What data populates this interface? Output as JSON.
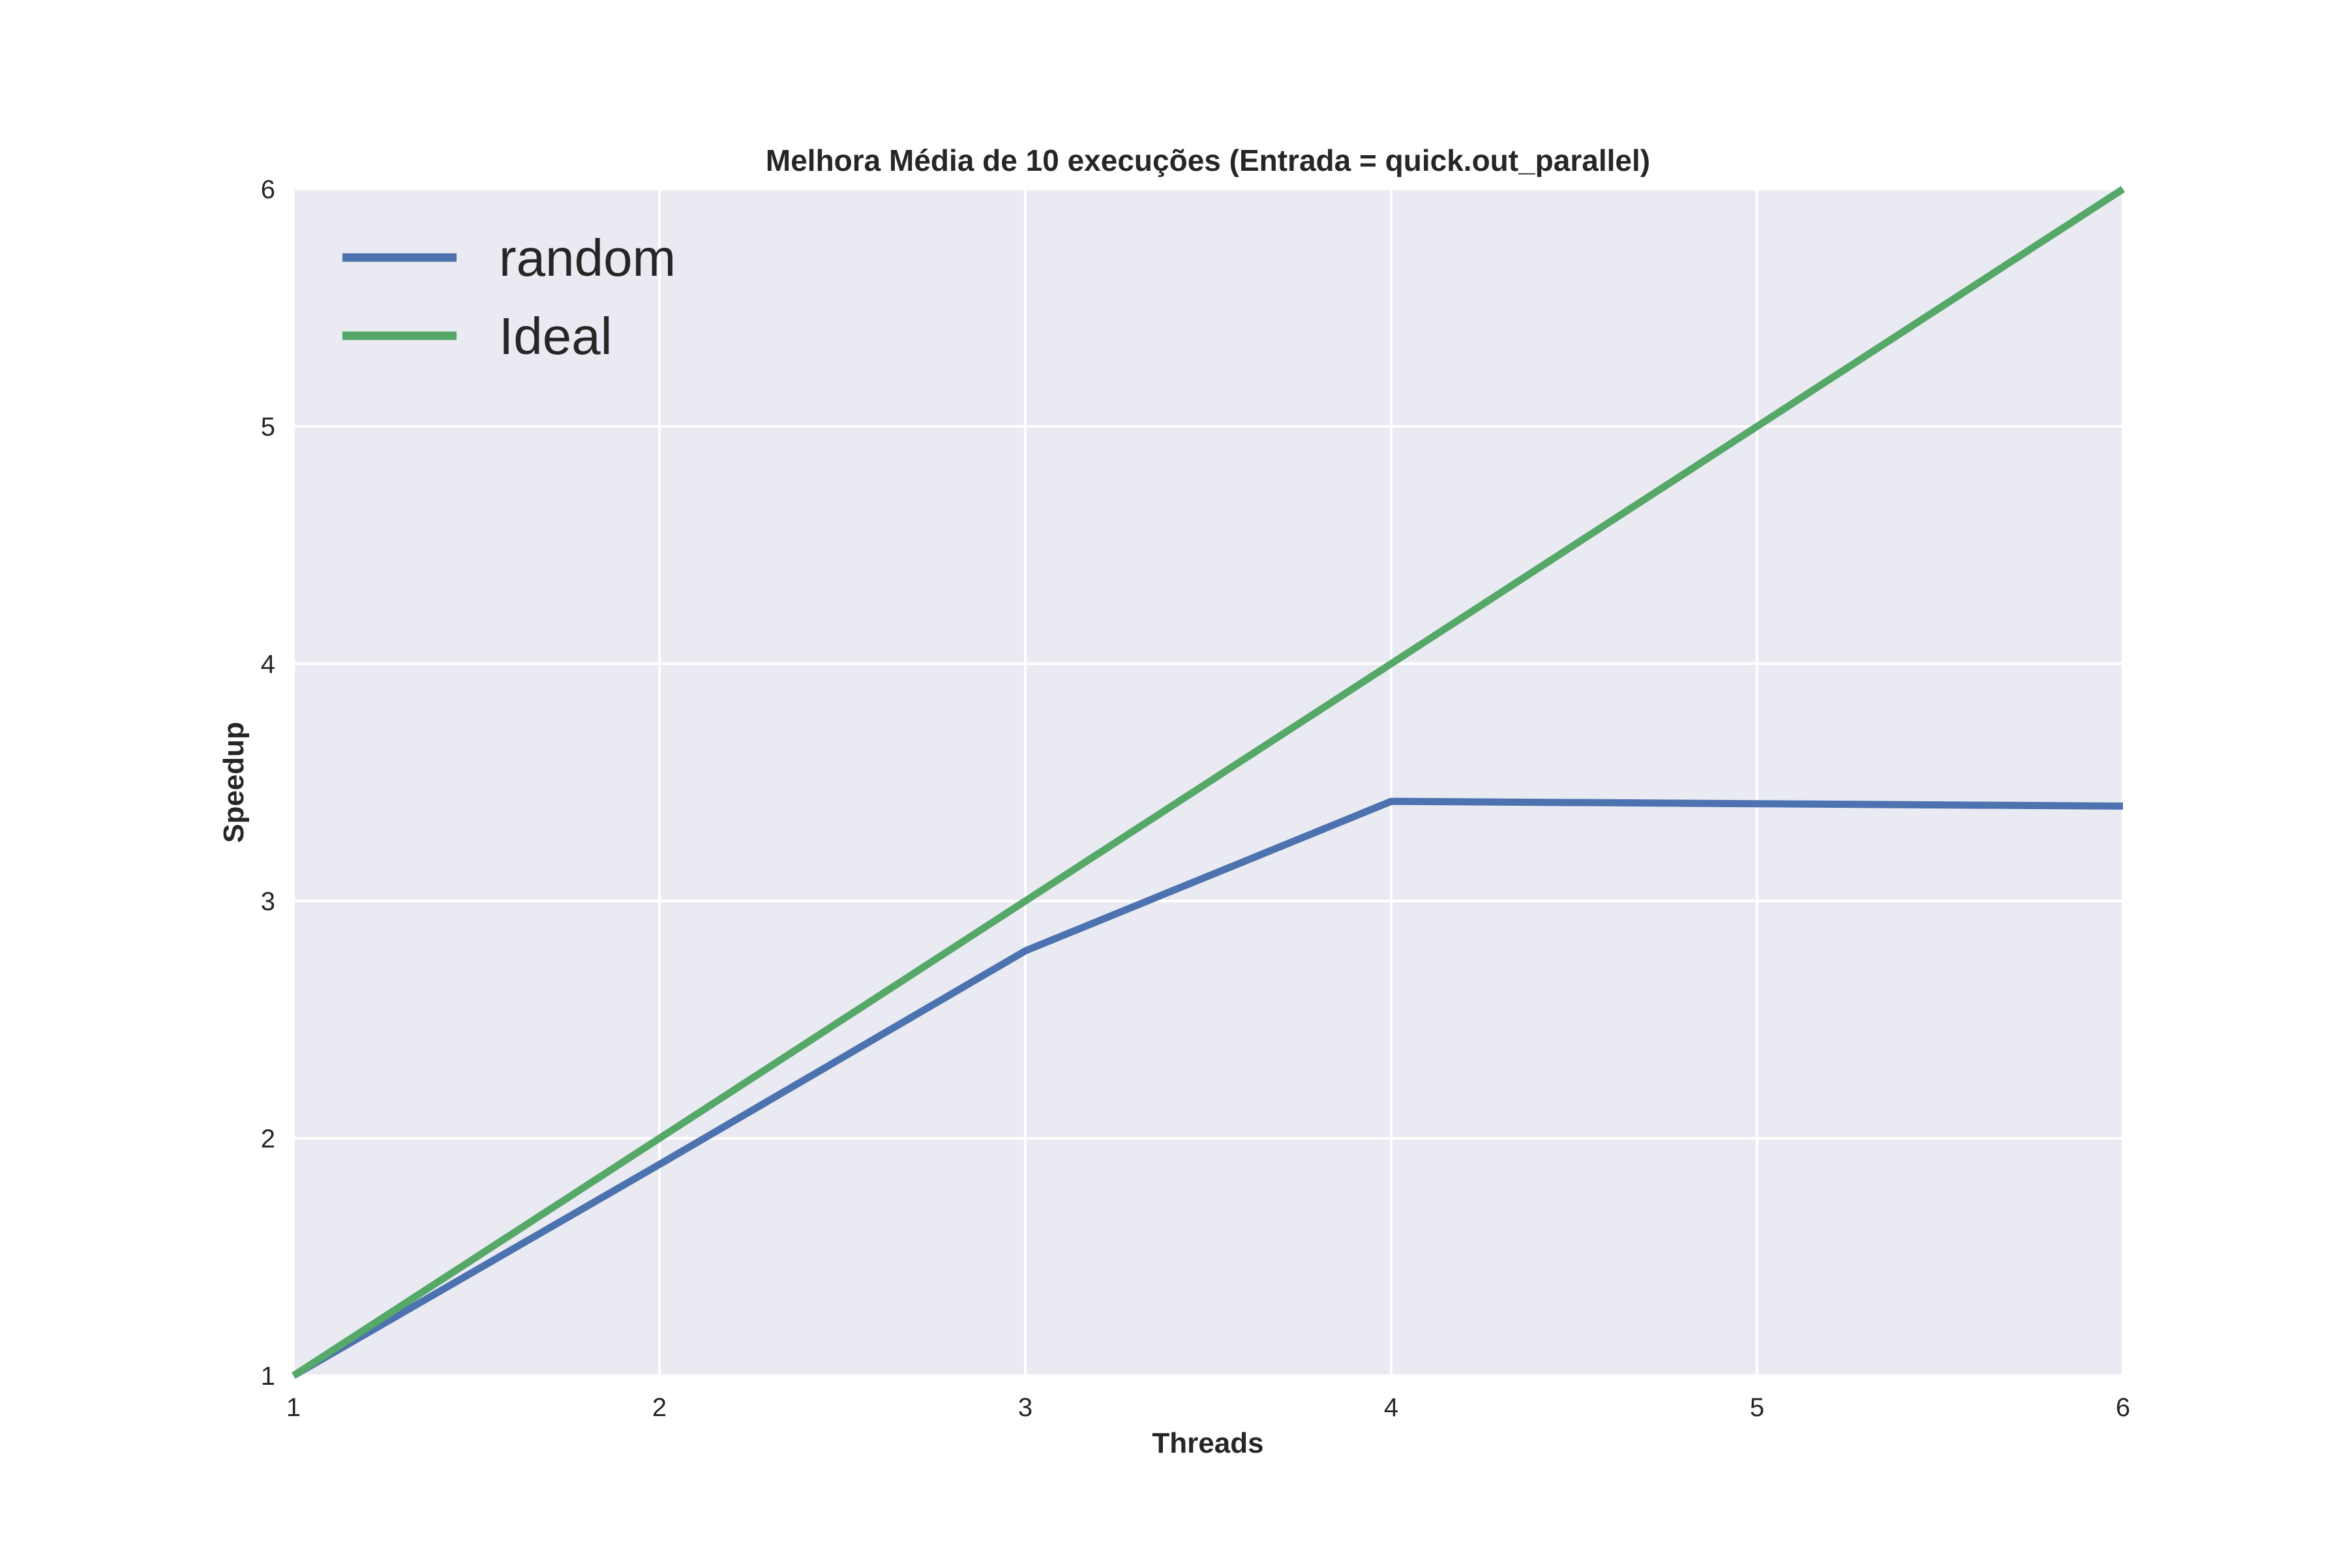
{
  "chart_data": {
    "type": "line",
    "title": "Melhora Média de 10 execuções (Entrada = quick.out_parallel)",
    "xlabel": "Threads",
    "ylabel": "Speedup",
    "x": [
      1,
      2,
      3,
      4,
      5,
      6
    ],
    "xlim": [
      1,
      6
    ],
    "ylim": [
      1,
      6
    ],
    "xticks": [
      "1",
      "2",
      "3",
      "4",
      "5",
      "6"
    ],
    "yticks": [
      "1",
      "2",
      "3",
      "4",
      "5",
      "6"
    ],
    "grid": true,
    "legend_position": "top-left",
    "series": [
      {
        "name": "random",
        "color": "#4c72b0",
        "values": [
          1.0,
          1.89,
          2.79,
          3.42,
          3.41,
          3.4
        ]
      },
      {
        "name": "Ideal",
        "color": "#55a868",
        "values": [
          1,
          2,
          3,
          4,
          5,
          6
        ]
      }
    ]
  },
  "style": {
    "plot_background": "#eaeaf2",
    "grid_color": "#ffffff",
    "text_color": "#262626"
  }
}
